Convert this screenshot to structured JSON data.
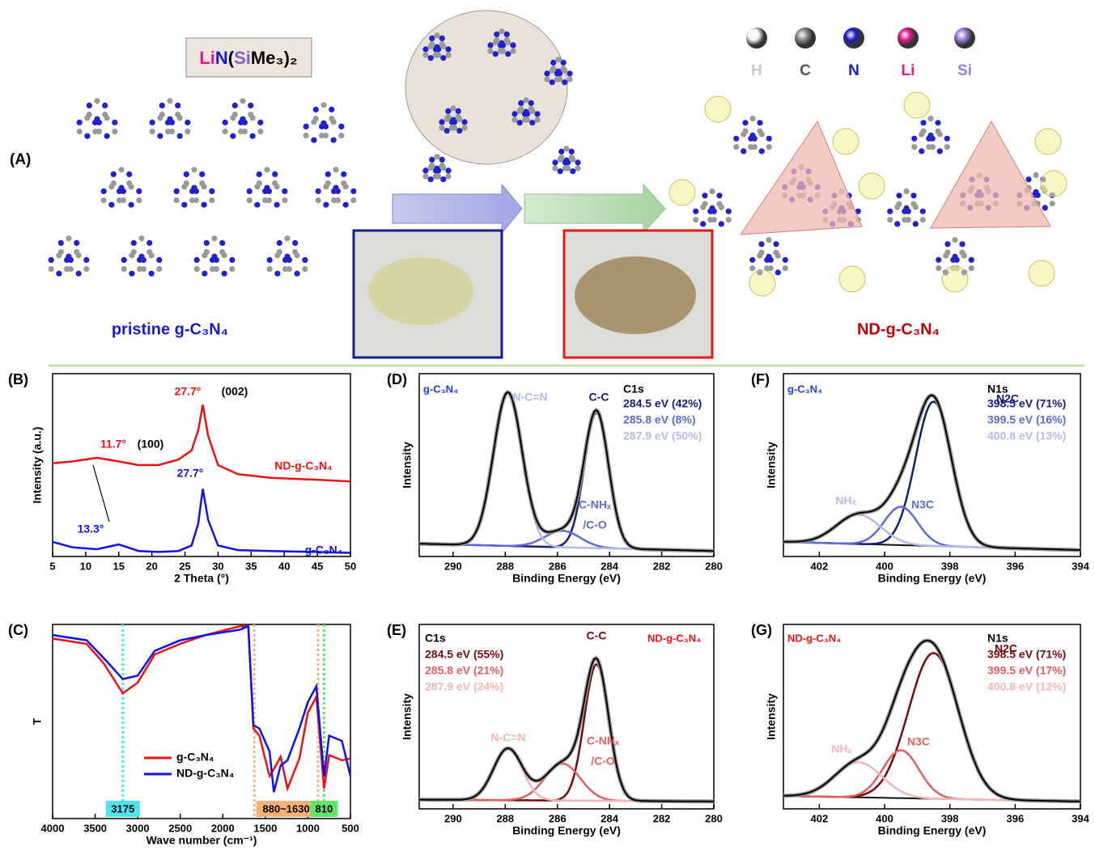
{
  "panel_a": {
    "label": "(A)",
    "reagent": [
      "Li",
      "N",
      "(",
      "Si",
      "Me₃)₂"
    ],
    "reagent_colors": [
      "#e6198c",
      "#1a1acc",
      "#000000",
      "#8a5cc8",
      "#000000"
    ],
    "atoms": [
      {
        "symbol": "H",
        "color": "#f4f4f4",
        "text_color": "#c8c8c8"
      },
      {
        "symbol": "C",
        "color": "#8a8a8a",
        "text_color": "#555555"
      },
      {
        "symbol": "N",
        "color": "#1a1acc",
        "text_color": "#1a1acc"
      },
      {
        "symbol": "Li",
        "color": "#e6198c",
        "text_color": "#e6198c"
      },
      {
        "symbol": "Si",
        "color": "#9a7fd6",
        "text_color": "#9a7fd6"
      }
    ],
    "pristine_label": "pristine g-C₃N₄",
    "nd_label": "ND-g-C₃N₄"
  },
  "chart_data": [
    {
      "type": "line",
      "panel": "(B)",
      "xlabel": "2 Theta (°)",
      "ylabel": "Intensity (a.u.)",
      "xlim": [
        5,
        50
      ],
      "xticks": [
        5,
        10,
        15,
        20,
        25,
        30,
        35,
        40,
        45,
        50
      ],
      "ylim": [
        0,
        10
      ],
      "x": [
        5,
        8,
        11.7,
        15,
        18,
        21,
        24,
        26,
        27,
        27.7,
        28.5,
        30,
        33,
        38,
        45,
        50
      ],
      "series": [
        {
          "name": "ND-g-C₃N₄",
          "color": "#ee1111",
          "values": [
            5.1,
            5.2,
            5.4,
            5.2,
            5.0,
            5.0,
            5.3,
            5.8,
            6.9,
            8.3,
            6.6,
            5.0,
            4.5,
            4.3,
            4.2,
            4.1
          ]
        },
        {
          "name": "g-C₃N₄",
          "color": "#1111ee",
          "values": [
            0.8,
            0.5,
            0.4,
            0.66,
            0.3,
            0.25,
            0.3,
            0.6,
            1.8,
            3.7,
            2.0,
            0.6,
            0.35,
            0.3,
            0.25,
            0.2
          ]
        }
      ],
      "annotations": [
        {
          "text": "27.7°",
          "color": "#ee1111"
        },
        {
          "text": "(002)",
          "color": "#000000"
        },
        {
          "text": "11.7°",
          "color": "#ee1111"
        },
        {
          "text": "(100)",
          "color": "#000000"
        },
        {
          "text": "13.3°",
          "color": "#1111ee"
        },
        {
          "text": "27.7°",
          "color": "#1111ee"
        }
      ]
    },
    {
      "type": "line",
      "panel": "(C)",
      "xlabel": "Wave number (cm⁻¹)",
      "ylabel": "T",
      "xlim": [
        4000,
        500
      ],
      "xticks": [
        4000,
        3500,
        3000,
        2500,
        2000,
        1500,
        1000,
        500
      ],
      "ylim": [
        -1,
        10
      ],
      "x": [
        4000,
        3600,
        3400,
        3175,
        3000,
        2800,
        2500,
        2200,
        1800,
        1700,
        1640,
        1570,
        1450,
        1400,
        1320,
        1240,
        1100,
        1000,
        900,
        810,
        750,
        600,
        500
      ],
      "series": [
        {
          "name": "g-C₃N₄",
          "color": "#ee1111",
          "values": [
            9.2,
            8.9,
            7.8,
            6.1,
            6.7,
            8.3,
            8.9,
            9.4,
            9.9,
            9.9,
            4.1,
            3.7,
            1.4,
            1.8,
            2.5,
            0.7,
            2.4,
            5.0,
            5.9,
            0.7,
            2.6,
            2.3,
            2.4
          ]
        },
        {
          "name": "ND-g-C₃N₄",
          "color": "#1111ee",
          "values": [
            9.4,
            9.1,
            8.1,
            6.9,
            7.1,
            8.5,
            9.1,
            9.4,
            9.7,
            9.9,
            4.3,
            4.1,
            2.8,
            0.5,
            2.0,
            2.3,
            4.1,
            5.6,
            6.5,
            1.4,
            3.7,
            3.4,
            1.4
          ]
        }
      ],
      "markers": [
        {
          "positions": [
            3175
          ],
          "label": "3175",
          "color": "#4fe3ef"
        },
        {
          "positions": [
            1630,
            880
          ],
          "label": "880~1630",
          "color": "#f5b27a"
        },
        {
          "positions": [
            810
          ],
          "label": "810",
          "color": "#5fe36a"
        }
      ]
    },
    {
      "type": "xps",
      "panel": "(D)",
      "sample": "g-C₃N₄",
      "sample_color": "#1f3fd6",
      "core_level": "C1s",
      "xlabel": "Binding Energy (eV)",
      "ylabel": "Intensity",
      "xlim": [
        291.3,
        280
      ],
      "xticks": [
        290,
        288,
        286,
        284,
        282,
        280
      ],
      "ylim": [
        0,
        10
      ],
      "background": [
        0.7,
        0.3
      ],
      "components": [
        {
          "name": "C-C",
          "center": 284.5,
          "height": 7.4,
          "fwhm": 1.1,
          "color": "#141d7a",
          "label": "284.5 eV (42%)",
          "percent": 42
        },
        {
          "name": "C-NHₓ",
          "name2": "/C-O",
          "center": 285.8,
          "height": 0.9,
          "fwhm": 1.6,
          "color": "#5c6bd6",
          "label": "285.8 eV (8%)",
          "percent": 8
        },
        {
          "name": "N-C=N",
          "center": 287.9,
          "height": 8.4,
          "fwhm": 1.3,
          "color": "#b3b9f0",
          "label": "287.9 eV (50%)",
          "percent": 50
        }
      ]
    },
    {
      "type": "xps",
      "panel": "(E)",
      "sample": "ND-g-C₃N₄",
      "sample_color": "#ee1111",
      "core_level": "C1s",
      "xlabel": "Binding Energy (eV)",
      "ylabel": "Intensity",
      "xlim": [
        291.3,
        280
      ],
      "xticks": [
        290,
        288,
        286,
        284,
        282,
        280
      ],
      "ylim": [
        0,
        10
      ],
      "background": [
        0.5,
        0.4
      ],
      "components": [
        {
          "name": "C-C",
          "center": 284.5,
          "height": 7.4,
          "fwhm": 1.1,
          "color": "#7a0a0a",
          "label": "284.5 eV (55%)",
          "percent": 55
        },
        {
          "name": "C-NHₓ",
          "name2": "/C-O",
          "center": 285.8,
          "height": 2.0,
          "fwhm": 1.6,
          "color": "#e06060",
          "label": "285.8 eV (21%)",
          "percent": 21
        },
        {
          "name": "N-C=N",
          "center": 287.9,
          "height": 2.8,
          "fwhm": 1.3,
          "color": "#f4b6b6",
          "label": "287.9 eV (24%)",
          "percent": 24
        }
      ]
    },
    {
      "type": "xps",
      "panel": "(F)",
      "sample": "g-C₃N₄",
      "sample_color": "#1f3fd6",
      "core_level": "N1s",
      "xlabel": "Binding Energy (eV)",
      "ylabel": "Intensity",
      "xlim": [
        403.1,
        394
      ],
      "xticks": [
        402,
        400,
        398,
        396,
        394
      ],
      "ylim": [
        0,
        10
      ],
      "background": [
        0.8,
        0.35
      ],
      "components": [
        {
          "name": "N2C",
          "center": 398.5,
          "height": 7.9,
          "fwhm": 1.3,
          "color": "#141d7a",
          "label": "398.5 eV (71%)",
          "percent": 71
        },
        {
          "name": "N3C",
          "center": 399.5,
          "height": 2.1,
          "fwhm": 1.2,
          "color": "#5c6bd6",
          "label": "399.5 eV (16%)",
          "percent": 16
        },
        {
          "name": "NHₓ",
          "center": 400.8,
          "height": 1.6,
          "fwhm": 1.6,
          "color": "#b3b9f0",
          "label": "400.8 eV (13%)",
          "percent": 13
        }
      ]
    },
    {
      "type": "xps",
      "panel": "(G)",
      "sample": "ND-g-C₃N₄",
      "sample_color": "#ee1111",
      "core_level": "N1s",
      "xlabel": "Binding Energy (eV)",
      "ylabel": "Intensity",
      "xlim": [
        403.1,
        394
      ],
      "xticks": [
        402,
        400,
        398,
        396,
        394
      ],
      "ylim": [
        0,
        10
      ],
      "background": [
        0.7,
        0.4
      ],
      "components": [
        {
          "name": "N2C",
          "center": 398.5,
          "height": 7.9,
          "fwhm": 1.8,
          "color": "#7a0a0a",
          "label": "398.5 eV (71%)",
          "percent": 71
        },
        {
          "name": "N3C",
          "center": 399.5,
          "height": 2.6,
          "fwhm": 1.3,
          "color": "#e06060",
          "label": "399.5 eV (17%)",
          "percent": 17
        },
        {
          "name": "NHₓ",
          "center": 400.8,
          "height": 1.9,
          "fwhm": 1.7,
          "color": "#f4b6b6",
          "label": "400.8 eV (12%)",
          "percent": 12
        }
      ]
    }
  ]
}
